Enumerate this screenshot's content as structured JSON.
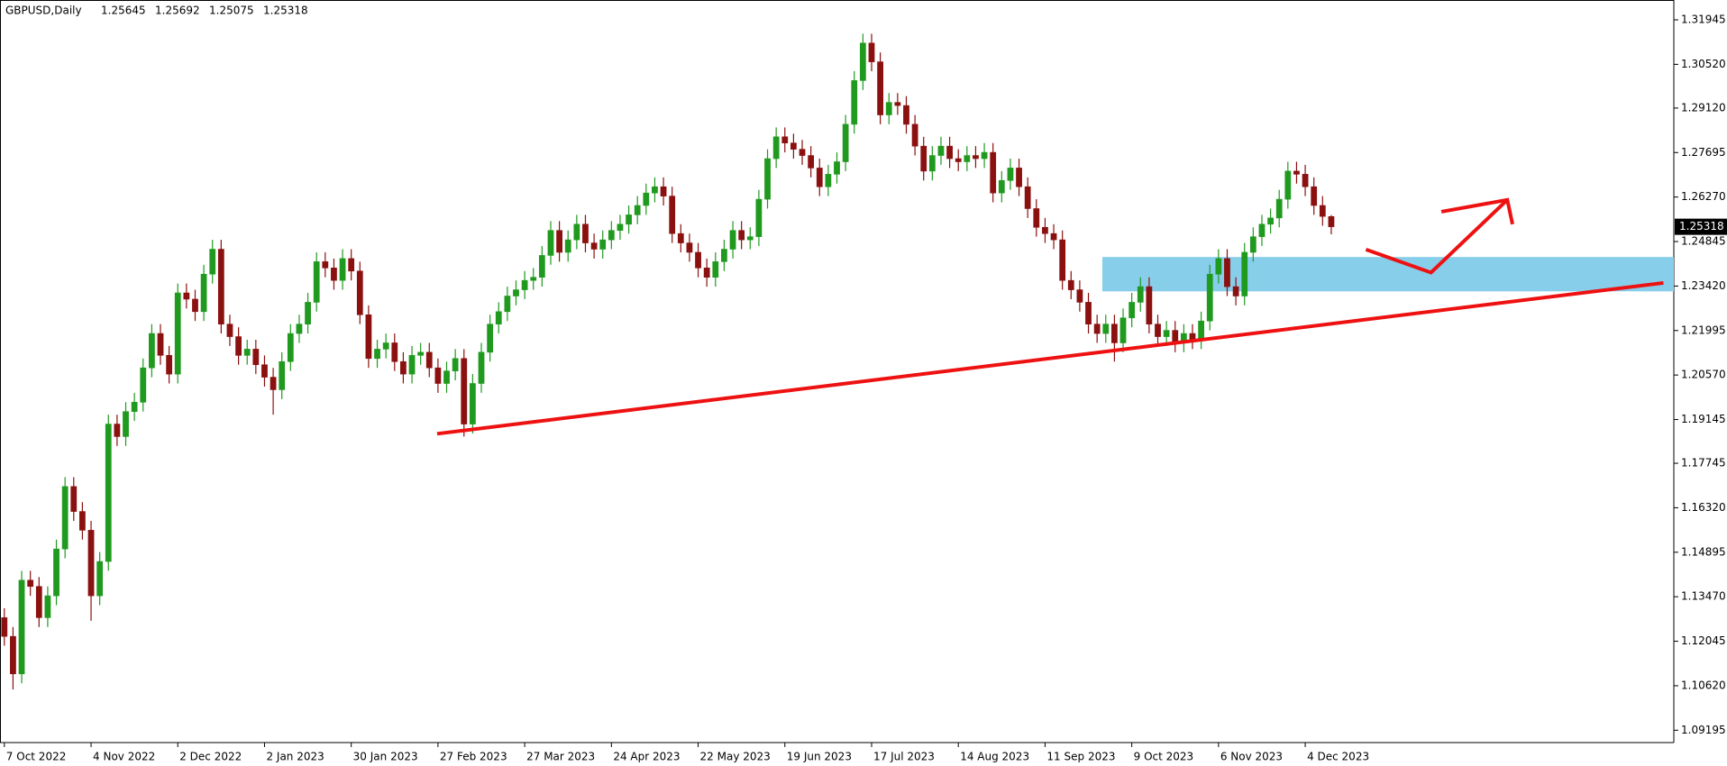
{
  "chart_data": {
    "type": "candlestick",
    "title": "GBPUSD,Daily",
    "open": [
      1.128,
      1.122,
      1.11,
      1.14,
      1.138,
      1.128,
      1.135,
      1.15,
      1.17,
      1.162,
      1.156,
      1.135,
      1.146,
      1.19,
      1.186,
      1.194,
      1.197,
      1.208,
      1.219,
      1.212,
      1.206,
      1.232,
      1.23,
      1.226,
      1.238,
      1.246,
      1.222,
      1.218,
      1.212,
      1.214,
      1.209,
      1.205,
      1.201,
      1.21,
      1.219,
      1.222,
      1.229,
      1.242,
      1.24,
      1.236,
      1.243,
      1.239,
      1.225,
      1.211,
      1.214,
      1.216,
      1.21,
      1.206,
      1.212,
      1.213,
      1.208,
      1.203,
      1.207,
      1.211,
      1.19,
      1.203,
      1.213,
      1.222,
      1.226,
      1.231,
      1.233,
      1.236,
      1.237,
      1.244,
      1.252,
      1.245,
      1.249,
      1.254,
      1.248,
      1.246,
      1.249,
      1.252,
      1.254,
      1.257,
      1.26,
      1.264,
      1.266,
      1.263,
      1.251,
      1.248,
      1.245,
      1.24,
      1.237,
      1.242,
      1.246,
      1.252,
      1.249,
      1.25,
      1.262,
      1.275,
      1.282,
      1.28,
      1.278,
      1.276,
      1.272,
      1.266,
      1.27,
      1.274,
      1.286,
      1.3,
      1.312,
      1.306,
      1.289,
      1.293,
      1.292,
      1.286,
      1.279,
      1.271,
      1.276,
      1.279,
      1.275,
      1.274,
      1.276,
      1.275,
      1.277,
      1.264,
      1.268,
      1.272,
      1.266,
      1.259,
      1.253,
      1.251,
      1.249,
      1.236,
      1.233,
      1.229,
      1.222,
      1.219,
      1.222,
      1.216,
      1.224,
      1.229,
      1.234,
      1.222,
      1.218,
      1.22,
      1.216,
      1.219,
      1.217,
      1.223,
      1.238,
      1.243,
      1.234,
      1.231,
      1.245,
      1.25,
      1.254,
      1.256,
      1.262,
      1.271,
      1.27,
      1.266,
      1.26,
      1.25645
    ],
    "high": [
      1.131,
      1.125,
      1.143,
      1.143,
      1.141,
      1.138,
      1.153,
      1.173,
      1.173,
      1.165,
      1.159,
      1.149,
      1.193,
      1.193,
      1.197,
      1.2,
      1.211,
      1.222,
      1.222,
      1.215,
      1.235,
      1.235,
      1.233,
      1.241,
      1.249,
      1.249,
      1.225,
      1.221,
      1.217,
      1.217,
      1.212,
      1.208,
      1.213,
      1.222,
      1.225,
      1.232,
      1.245,
      1.245,
      1.243,
      1.246,
      1.246,
      1.242,
      1.228,
      1.217,
      1.219,
      1.219,
      1.213,
      1.215,
      1.216,
      1.216,
      1.211,
      1.21,
      1.214,
      1.214,
      1.206,
      1.216,
      1.225,
      1.229,
      1.234,
      1.236,
      1.239,
      1.24,
      1.247,
      1.255,
      1.255,
      1.252,
      1.257,
      1.257,
      1.251,
      1.252,
      1.255,
      1.257,
      1.26,
      1.263,
      1.267,
      1.269,
      1.269,
      1.266,
      1.254,
      1.251,
      1.248,
      1.243,
      1.245,
      1.249,
      1.255,
      1.255,
      1.253,
      1.265,
      1.278,
      1.285,
      1.285,
      1.283,
      1.281,
      1.279,
      1.275,
      1.273,
      1.277,
      1.289,
      1.303,
      1.315,
      1.315,
      1.309,
      1.296,
      1.296,
      1.295,
      1.289,
      1.282,
      1.279,
      1.282,
      1.282,
      1.278,
      1.279,
      1.279,
      1.28,
      1.28,
      1.271,
      1.275,
      1.275,
      1.269,
      1.262,
      1.256,
      1.254,
      1.252,
      1.239,
      1.236,
      1.232,
      1.225,
      1.225,
      1.225,
      1.227,
      1.232,
      1.237,
      1.237,
      1.225,
      1.223,
      1.223,
      1.222,
      1.222,
      1.226,
      1.241,
      1.246,
      1.246,
      1.237,
      1.248,
      1.253,
      1.257,
      1.259,
      1.265,
      1.274,
      1.274,
      1.273,
      1.269,
      1.263,
      1.25692
    ],
    "low": [
      1.119,
      1.105,
      1.107,
      1.135,
      1.125,
      1.125,
      1.132,
      1.147,
      1.159,
      1.153,
      1.127,
      1.132,
      1.143,
      1.183,
      1.183,
      1.191,
      1.194,
      1.205,
      1.209,
      1.203,
      1.203,
      1.227,
      1.223,
      1.223,
      1.235,
      1.219,
      1.215,
      1.209,
      1.209,
      1.206,
      1.202,
      1.193,
      1.198,
      1.207,
      1.216,
      1.219,
      1.226,
      1.237,
      1.233,
      1.233,
      1.236,
      1.222,
      1.208,
      1.208,
      1.211,
      1.207,
      1.203,
      1.203,
      1.209,
      1.205,
      1.2,
      1.2,
      1.204,
      1.186,
      1.187,
      1.2,
      1.21,
      1.219,
      1.223,
      1.228,
      1.23,
      1.233,
      1.234,
      1.241,
      1.242,
      1.242,
      1.246,
      1.245,
      1.243,
      1.243,
      1.246,
      1.249,
      1.251,
      1.254,
      1.257,
      1.261,
      1.26,
      1.248,
      1.245,
      1.242,
      1.237,
      1.234,
      1.234,
      1.239,
      1.243,
      1.246,
      1.246,
      1.247,
      1.259,
      1.272,
      1.277,
      1.275,
      1.273,
      1.269,
      1.263,
      1.263,
      1.267,
      1.271,
      1.283,
      1.297,
      1.303,
      1.286,
      1.286,
      1.289,
      1.283,
      1.276,
      1.268,
      1.268,
      1.273,
      1.272,
      1.271,
      1.271,
      1.272,
      1.272,
      1.261,
      1.261,
      1.265,
      1.263,
      1.256,
      1.25,
      1.248,
      1.246,
      1.233,
      1.23,
      1.226,
      1.219,
      1.216,
      1.216,
      1.21,
      1.213,
      1.221,
      1.226,
      1.219,
      1.215,
      1.215,
      1.213,
      1.213,
      1.214,
      1.214,
      1.22,
      1.235,
      1.231,
      1.228,
      1.228,
      1.242,
      1.247,
      1.251,
      1.253,
      1.259,
      1.267,
      1.263,
      1.257,
      1.2535,
      1.25075
    ],
    "close": [
      1.122,
      1.11,
      1.14,
      1.138,
      1.128,
      1.135,
      1.15,
      1.17,
      1.162,
      1.156,
      1.135,
      1.146,
      1.19,
      1.186,
      1.194,
      1.197,
      1.208,
      1.219,
      1.212,
      1.206,
      1.232,
      1.23,
      1.226,
      1.238,
      1.246,
      1.222,
      1.218,
      1.212,
      1.214,
      1.209,
      1.205,
      1.201,
      1.21,
      1.219,
      1.222,
      1.229,
      1.242,
      1.24,
      1.236,
      1.243,
      1.239,
      1.225,
      1.211,
      1.214,
      1.216,
      1.21,
      1.206,
      1.212,
      1.213,
      1.208,
      1.203,
      1.207,
      1.211,
      1.19,
      1.203,
      1.213,
      1.222,
      1.226,
      1.231,
      1.233,
      1.236,
      1.237,
      1.244,
      1.252,
      1.245,
      1.249,
      1.254,
      1.248,
      1.246,
      1.249,
      1.252,
      1.254,
      1.257,
      1.26,
      1.264,
      1.266,
      1.263,
      1.251,
      1.248,
      1.245,
      1.24,
      1.237,
      1.242,
      1.246,
      1.252,
      1.249,
      1.25,
      1.262,
      1.275,
      1.282,
      1.28,
      1.278,
      1.276,
      1.272,
      1.266,
      1.27,
      1.274,
      1.286,
      1.3,
      1.312,
      1.306,
      1.289,
      1.293,
      1.292,
      1.286,
      1.279,
      1.271,
      1.276,
      1.279,
      1.275,
      1.274,
      1.276,
      1.275,
      1.277,
      1.264,
      1.268,
      1.272,
      1.266,
      1.259,
      1.253,
      1.251,
      1.249,
      1.236,
      1.233,
      1.229,
      1.222,
      1.219,
      1.222,
      1.216,
      1.224,
      1.229,
      1.234,
      1.222,
      1.218,
      1.22,
      1.216,
      1.219,
      1.217,
      1.223,
      1.238,
      1.243,
      1.234,
      1.231,
      1.245,
      1.25,
      1.254,
      1.256,
      1.262,
      1.271,
      1.27,
      1.266,
      1.26,
      1.2565,
      1.25318
    ],
    "up_color": "#1f9a1f",
    "down_color": "#8b1010",
    "xlim": [
      -0.5,
      192.5
    ],
    "xticks": [
      {
        "value": 0,
        "label": "7 Oct 2022"
      },
      {
        "value": 10,
        "label": "4 Nov 2022"
      },
      {
        "value": 20,
        "label": "2 Dec 2022"
      },
      {
        "value": 30,
        "label": "2 Jan 2023"
      },
      {
        "value": 40,
        "label": "30 Jan 2023"
      },
      {
        "value": 50,
        "label": "27 Feb 2023"
      },
      {
        "value": 60,
        "label": "27 Mar 2023"
      },
      {
        "value": 70,
        "label": "24 Apr 2023"
      },
      {
        "value": 80,
        "label": "22 May 2023"
      },
      {
        "value": 90,
        "label": "19 Jun 2023"
      },
      {
        "value": 100,
        "label": "17 Jul 2023"
      },
      {
        "value": 110,
        "label": "14 Aug 2023"
      },
      {
        "value": 120,
        "label": "11 Sep 2023"
      },
      {
        "value": 130,
        "label": "9 Oct 2023"
      },
      {
        "value": 140,
        "label": "6 Nov 2023"
      },
      {
        "value": 150,
        "label": "4 Dec 2023"
      }
    ],
    "ylim": [
      1.088,
      1.3258
    ],
    "yticks": [
      {
        "value": 1.31945,
        "label": "1.31945"
      },
      {
        "value": 1.3052,
        "label": "1.30520"
      },
      {
        "value": 1.2912,
        "label": "1.29120"
      },
      {
        "value": 1.27695,
        "label": "1.27695"
      },
      {
        "value": 1.2627,
        "label": "1.26270"
      },
      {
        "value": 1.24845,
        "label": "1.24845"
      },
      {
        "value": 1.2342,
        "label": "1.23420"
      },
      {
        "value": 1.21995,
        "label": "1.21995"
      },
      {
        "value": 1.2057,
        "label": "1.20570"
      },
      {
        "value": 1.19145,
        "label": "1.19145"
      },
      {
        "value": 1.17745,
        "label": "1.17745"
      },
      {
        "value": 1.1632,
        "label": "1.16320"
      },
      {
        "value": 1.14895,
        "label": "1.14895"
      },
      {
        "value": 1.1347,
        "label": "1.13470"
      },
      {
        "value": 1.12045,
        "label": "1.12045"
      },
      {
        "value": 1.1062,
        "label": "1.10620"
      },
      {
        "value": 1.09195,
        "label": "1.09195"
      }
    ]
  }
}
